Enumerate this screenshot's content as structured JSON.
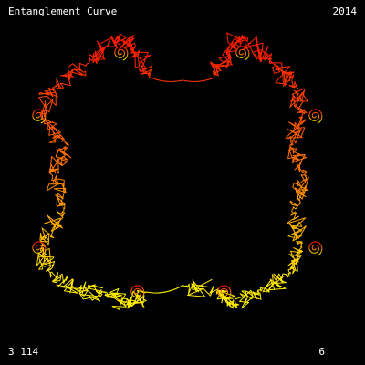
{
  "header": {
    "title": "Entanglement Curve",
    "year": "2014"
  },
  "footer": {
    "counter": "3 114",
    "level": "6"
  },
  "curve": {
    "gradient_top_color": "#ff1a00",
    "gradient_mid_color": "#ff7a00",
    "gradient_bottom_color": "#ffee00",
    "background_color": "#000000"
  }
}
